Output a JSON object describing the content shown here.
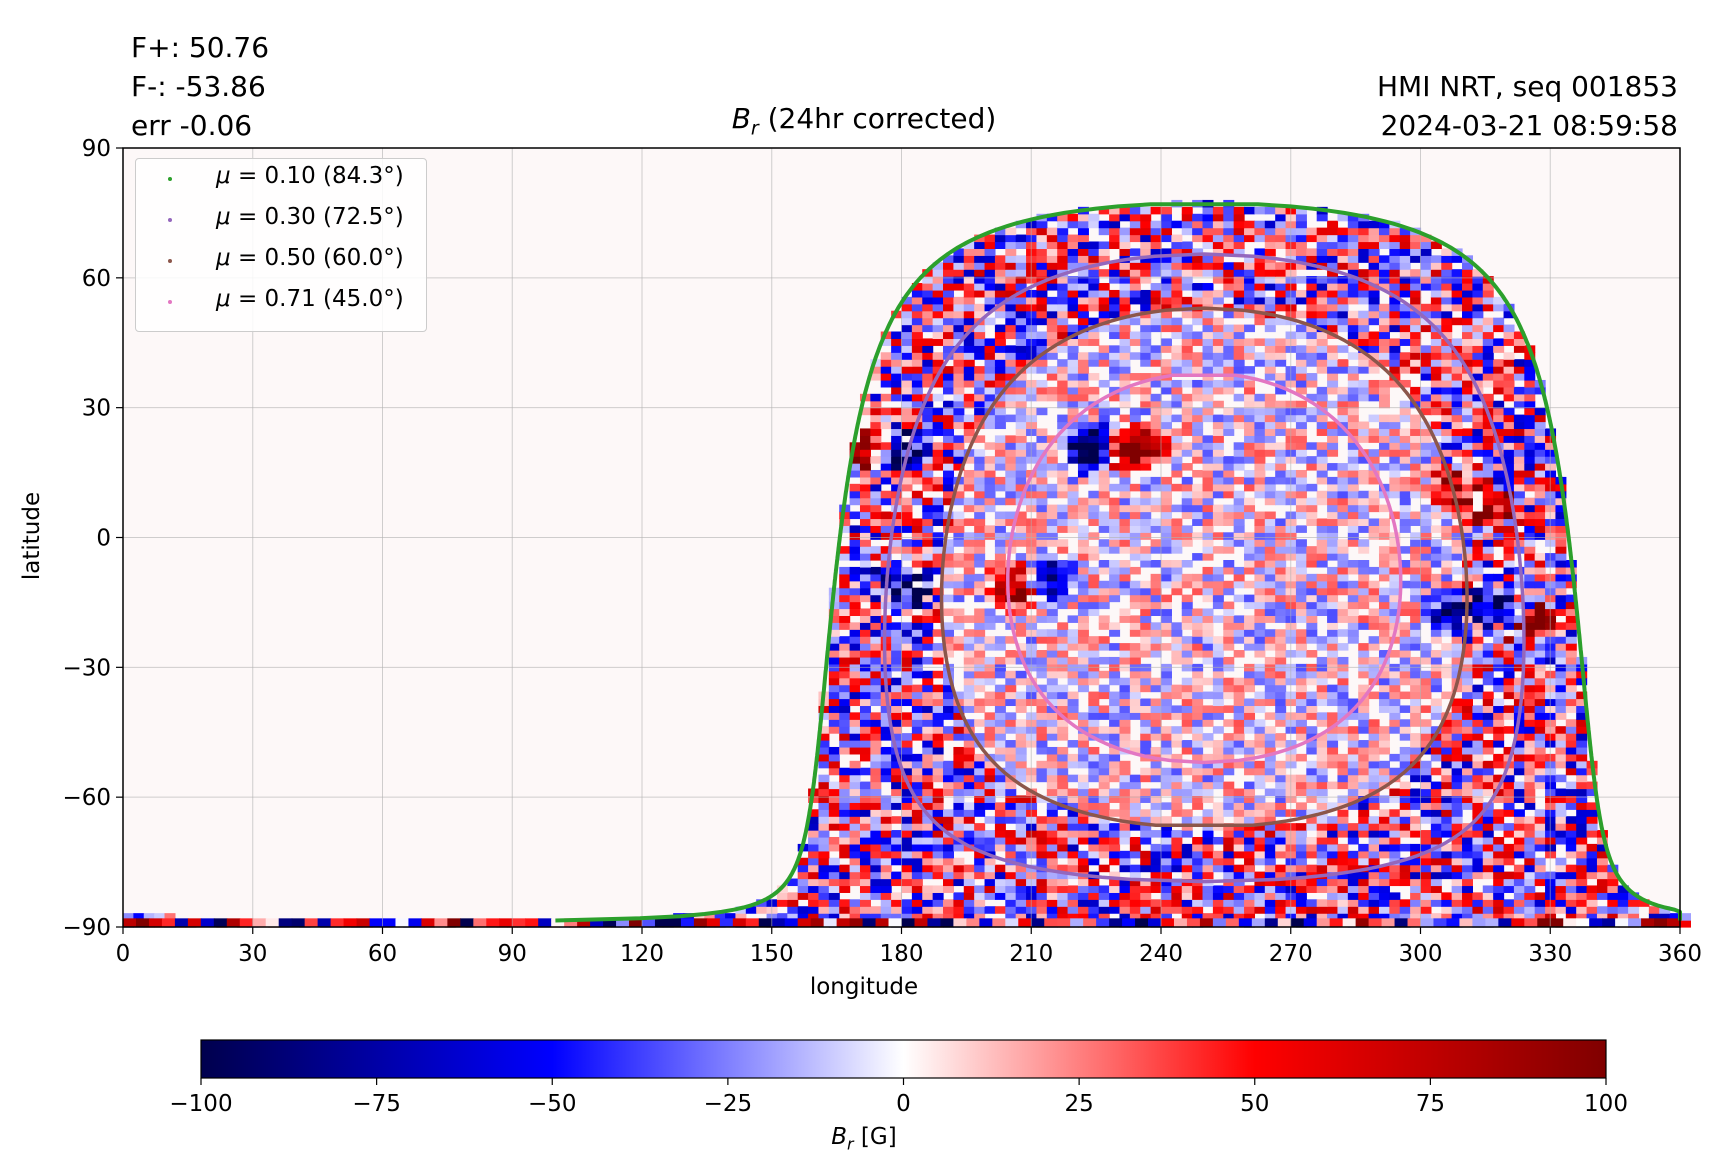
{
  "header": {
    "stats": [
      "F+: 50.76",
      "F-: -53.86",
      "err -0.06"
    ],
    "source_line1": "HMI NRT, seq 001853",
    "source_line2": "2024-03-21 08:59:58",
    "title_symbol": "B",
    "title_subscript": "r",
    "title_rest": " (24hr corrected)"
  },
  "chart_data": {
    "type": "heatmap",
    "xlabel": "longitude",
    "ylabel": "latitude",
    "xlim": [
      0,
      360
    ],
    "ylim": [
      -90,
      90
    ],
    "xticks": [
      0,
      30,
      60,
      90,
      120,
      150,
      180,
      210,
      240,
      270,
      300,
      330,
      360
    ],
    "yticks": [
      90,
      60,
      30,
      0,
      -30,
      -60,
      -90
    ],
    "ytick_labels": [
      "90",
      "60",
      "30",
      "0",
      "−30",
      "−60",
      "−90"
    ],
    "grid": true,
    "legend_position": "top-left",
    "disk_center_lon": 250,
    "disk_center_lat": -7,
    "contours": [
      {
        "name": "μ = 0.10 (84.3°)",
        "mu_text": "μ",
        "rest": " = 0.10 (84.3°)",
        "angle_deg": 84.3,
        "color": "#2ca02c"
      },
      {
        "name": "μ = 0.30 (72.5°)",
        "mu_text": "μ",
        "rest": " = 0.30 (72.5°)",
        "angle_deg": 72.5,
        "color": "#9467bd"
      },
      {
        "name": "μ = 0.50 (60.0°)",
        "mu_text": "μ",
        "rest": " = 0.50 (60.0°)",
        "angle_deg": 60.0,
        "color": "#8c564b"
      },
      {
        "name": "μ = 0.71 (45.0°)",
        "mu_text": "μ",
        "rest": " = 0.71 (45.0°)",
        "angle_deg": 45.0,
        "color": "#e377c2"
      }
    ],
    "active_regions": [
      {
        "lon": 222,
        "lat": 20,
        "polarity": "negative",
        "strength": 1.0
      },
      {
        "lon": 233,
        "lat": 20,
        "polarity": "positive",
        "strength": 1.0
      },
      {
        "lon": 213,
        "lat": -10,
        "polarity": "negative",
        "strength": 0.8
      },
      {
        "lon": 205,
        "lat": -12,
        "polarity": "positive",
        "strength": 0.8
      },
      {
        "lon": 179,
        "lat": -12,
        "polarity": "negative",
        "strength": 0.8
      },
      {
        "lon": 178,
        "lat": 20,
        "polarity": "negative",
        "strength": 0.7
      },
      {
        "lon": 170,
        "lat": 20,
        "polarity": "positive",
        "strength": 0.8
      },
      {
        "lon": 318,
        "lat": -17,
        "polarity": "negative",
        "strength": 0.8
      },
      {
        "lon": 324,
        "lat": -20,
        "polarity": "positive",
        "strength": 0.8
      },
      {
        "lon": 306,
        "lat": -18,
        "polarity": "negative",
        "strength": 0.6
      },
      {
        "lon": 307,
        "lat": 11,
        "polarity": "positive",
        "strength": 0.6
      },
      {
        "lon": 316,
        "lat": 5,
        "polarity": "positive",
        "strength": 0.6
      }
    ],
    "colorbar": {
      "label_symbol": "B",
      "label_subscript": "r",
      "label_unit": " [G]",
      "min": -100,
      "max": 100,
      "ticks": [
        -100,
        -75,
        -50,
        -25,
        0,
        25,
        50,
        75,
        100
      ],
      "tick_labels": [
        "−100",
        "−75",
        "−50",
        "−25",
        "0",
        "25",
        "50",
        "75",
        "100"
      ],
      "colormap": "seismic"
    }
  }
}
